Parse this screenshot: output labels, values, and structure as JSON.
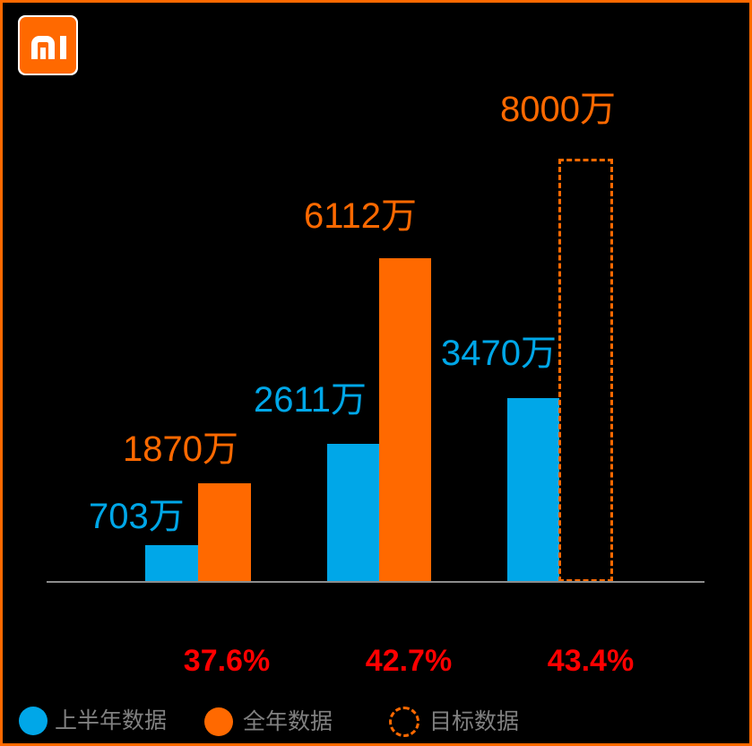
{
  "brand": {
    "logo": "mi-logo",
    "logo_color": "#FF6900"
  },
  "chart_data": {
    "type": "bar",
    "unit": "万",
    "title": "",
    "axis": {
      "baseline_visible": true,
      "gridlines": false,
      "ylim": [
        0,
        8000
      ]
    },
    "series": [
      {
        "name": "上半年数据",
        "style": "solid",
        "color": "#00A7E8",
        "values": [
          703,
          2611,
          3470
        ],
        "labels": [
          "703万",
          "2611万",
          "3470万"
        ]
      },
      {
        "name": "全年数据",
        "style": "solid",
        "color": "#FF6900",
        "values": [
          1870,
          6112,
          null
        ],
        "labels": [
          "1870万",
          "6112万",
          null
        ]
      },
      {
        "name": "目标数据",
        "style": "dashed-outline",
        "color": "#FF6900",
        "values": [
          null,
          null,
          8000
        ],
        "labels": [
          null,
          null,
          "8000万"
        ]
      }
    ],
    "growth_labels": [
      "37.6%",
      "42.7%",
      "43.4%"
    ],
    "growth_color": "#FF0000",
    "legend_position": "bottom"
  },
  "legend": {
    "items": [
      {
        "label": "上半年数据",
        "swatch": "solid-blue",
        "swatch_color": "#00A7E8"
      },
      {
        "label": "全年数据",
        "swatch": "solid-orange",
        "swatch_color": "#FF6900"
      },
      {
        "label": "目标数据",
        "swatch": "dashed-orange-outline",
        "swatch_color": "#FF6900"
      }
    ]
  },
  "colors": {
    "background": "#000000",
    "frame_border": "#FF6900",
    "axis": "#8c8c8c",
    "legend_text": "#808080"
  }
}
